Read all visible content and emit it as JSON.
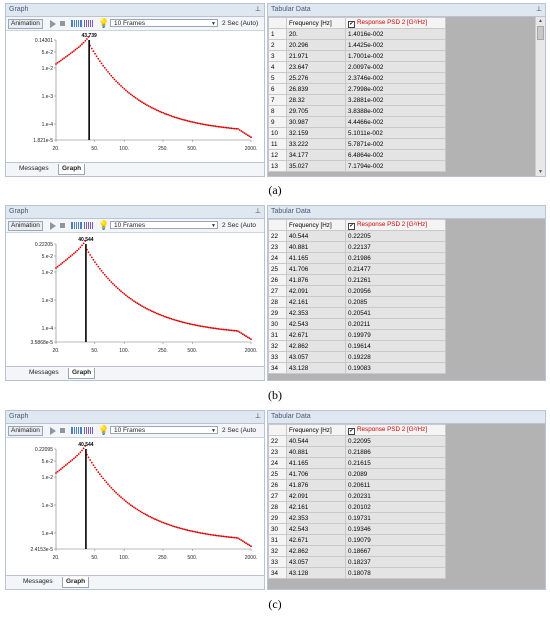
{
  "colors": {
    "curve": "#e00000",
    "peak_line": "#000000",
    "title_bg": "#dfe7f1"
  },
  "toolbar": {
    "animation": "Animation",
    "frames": "10 Frames",
    "seconds_a": "2 Sec (Auto)",
    "seconds_bc": "2 Sec (Auto"
  },
  "bottom_tabs": {
    "messages": "Messages",
    "graph": "Graph"
  },
  "panels": [
    {
      "graph_title": "Graph",
      "table_title": "Tabular Data",
      "caption": "(a)",
      "col_freq": "Frequency [Hz]",
      "col_resp": "Response PSD 2 [G²/Hz]",
      "peak_label": "43.739",
      "y_max_label": "0.14301",
      "y_min_label": "1.821e-5",
      "y_ticks": [
        "5.e-2",
        "1.e-2",
        "1.e-3",
        "1.e-4"
      ],
      "x_ticks": [
        "20.",
        "50.",
        "100.",
        "250.",
        "500.",
        "2000."
      ],
      "rows": [
        [
          "1",
          "20.",
          "1.4016e-002"
        ],
        [
          "2",
          "20.296",
          "1.4425e-002"
        ],
        [
          "3",
          "21.971",
          "1.7001e-002"
        ],
        [
          "4",
          "23.647",
          "2.0097e-002"
        ],
        [
          "5",
          "25.276",
          "2.3746e-002"
        ],
        [
          "6",
          "26.839",
          "2.7998e-002"
        ],
        [
          "7",
          "28.32",
          "3.2881e-002"
        ],
        [
          "8",
          "29.705",
          "3.8388e-002"
        ],
        [
          "9",
          "30.987",
          "4.4466e-002"
        ],
        [
          "10",
          "32.159",
          "5.1011e-002"
        ],
        [
          "11",
          "33.222",
          "5.7871e-002"
        ],
        [
          "12",
          "34.177",
          "6.4864e-002"
        ],
        [
          "13",
          "35.027",
          "7.1794e-002"
        ]
      ]
    },
    {
      "graph_title": "Graph",
      "table_title": "Tabular Data",
      "caption": "(b)",
      "col_freq": "Frequency [Hz]",
      "col_resp": "Response PSD 2 [G²/Hz]",
      "peak_label": "40.544",
      "y_max_label": "0.22205",
      "y_min_label": "3.5868e-5",
      "y_ticks": [
        "5.e-2",
        "1.e-2",
        "1.e-3",
        "1.e-4"
      ],
      "x_ticks": [
        "20.",
        "50.",
        "100.",
        "250.",
        "500.",
        "2000."
      ],
      "rows": [
        [
          "22",
          "40.544",
          "0.22205"
        ],
        [
          "23",
          "40.881",
          "0.22137"
        ],
        [
          "24",
          "41.165",
          "0.21986"
        ],
        [
          "25",
          "41.706",
          "0.21477"
        ],
        [
          "26",
          "41.876",
          "0.21261"
        ],
        [
          "27",
          "42.091",
          "0.20956"
        ],
        [
          "28",
          "42.161",
          "0.2085"
        ],
        [
          "29",
          "42.353",
          "0.20541"
        ],
        [
          "30",
          "42.543",
          "0.20211"
        ],
        [
          "31",
          "42.671",
          "0.19979"
        ],
        [
          "32",
          "42.862",
          "0.19614"
        ],
        [
          "33",
          "43.057",
          "0.19228"
        ],
        [
          "34",
          "43.128",
          "0.19083"
        ]
      ]
    },
    {
      "graph_title": "Graph",
      "table_title": "Tabular Data",
      "caption": "(c)",
      "col_freq": "Frequency [Hz]",
      "col_resp": "Response PSD 2 [G²/Hz]",
      "peak_label": "40.544",
      "y_max_label": "0.22095",
      "y_min_label": "2.4153e-5",
      "y_ticks": [
        "5.e-2",
        "1.e-2",
        "1.e-3",
        "1.e-4"
      ],
      "x_ticks": [
        "20.",
        "50.",
        "100.",
        "250.",
        "500.",
        "2000."
      ],
      "rows": [
        [
          "22",
          "40.544",
          "0.22095"
        ],
        [
          "23",
          "40.881",
          "0.21886"
        ],
        [
          "24",
          "41.165",
          "0.21615"
        ],
        [
          "25",
          "41.706",
          "0.2089"
        ],
        [
          "26",
          "41.876",
          "0.20611"
        ],
        [
          "27",
          "42.091",
          "0.20231"
        ],
        [
          "28",
          "42.161",
          "0.20102"
        ],
        [
          "29",
          "42.353",
          "0.19731"
        ],
        [
          "30",
          "42.543",
          "0.19346"
        ],
        [
          "31",
          "42.671",
          "0.19079"
        ],
        [
          "32",
          "42.862",
          "0.18667"
        ],
        [
          "33",
          "43.057",
          "0.18237"
        ],
        [
          "34",
          "43.128",
          "0.18078"
        ]
      ]
    }
  ]
}
